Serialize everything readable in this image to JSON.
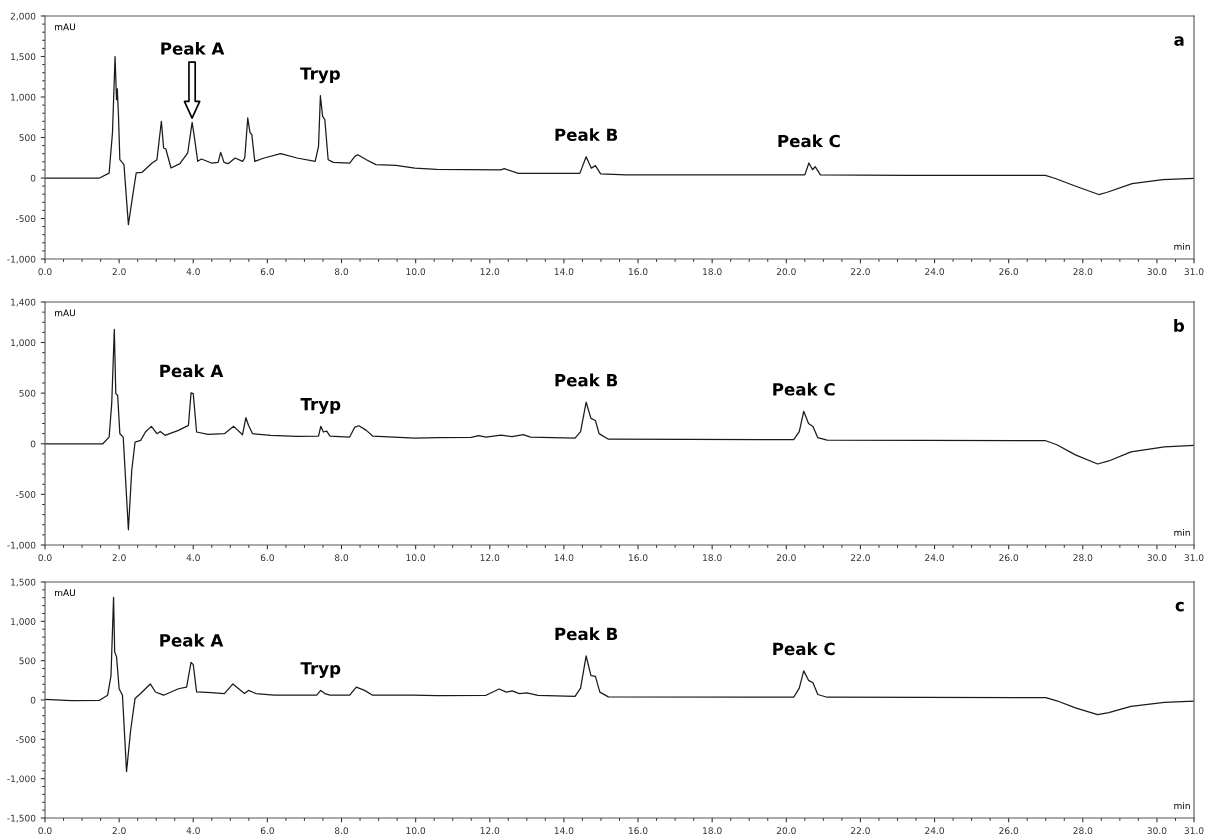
{
  "chart_data": [
    {
      "type": "line",
      "title": "a",
      "xlabel": "min",
      "ylabel": "mAU",
      "xlim": [
        0,
        31
      ],
      "xticks": [
        {
          "value": 0,
          "label": "0.0"
        },
        {
          "value": 2,
          "label": "2.0"
        },
        {
          "value": 4,
          "label": "4.0"
        },
        {
          "value": 6,
          "label": "6.0"
        },
        {
          "value": 8,
          "label": "8.0"
        },
        {
          "value": 10,
          "label": "10.0"
        },
        {
          "value": 12,
          "label": "12.0"
        },
        {
          "value": 14,
          "label": "14.0"
        },
        {
          "value": 16,
          "label": "16.0"
        },
        {
          "value": 18,
          "label": "18.0"
        },
        {
          "value": 20,
          "label": "20.0"
        },
        {
          "value": 22,
          "label": "22.0"
        },
        {
          "value": 24,
          "label": "24.0"
        },
        {
          "value": 26,
          "label": "26.0"
        },
        {
          "value": 28,
          "label": "28.0"
        },
        {
          "value": 30,
          "label": "30.0"
        },
        {
          "value": 31,
          "label": "31.0"
        }
      ],
      "ylim": [
        -1000,
        2000
      ],
      "yticks": [
        {
          "value": -1000,
          "label": "-1,000"
        },
        -500,
        0,
        500,
        {
          "value": 1000,
          "label": "1,000"
        },
        {
          "value": 1500,
          "label": "1,500"
        },
        {
          "value": 2000,
          "label": "2,000"
        }
      ],
      "grid": false,
      "legend": false,
      "marker": "none",
      "line_style": "solid",
      "annotations": [
        "Peak A",
        {
          "text": "Tryp",
          "x": 7.43,
          "y": 1016
        },
        {
          "text": "Peak B",
          "x": 14.6,
          "y": 262
        },
        {
          "text": "Peak C",
          "x": 20.61,
          "y": 185
        }
      ],
      "series": [
        {
          "color": "#1a1a1a",
          "x": [
            0,
            1.47,
            1.73,
            1.82,
            1.89,
            1.93,
            1.95,
            1.98,
            2.02,
            2.13,
            2.25,
            2.35,
            2.46,
            2.62,
            2.89,
            3.02,
            3.14,
            3.2,
            3.26,
            3.4,
            3.64,
            3.85,
            3.97,
            4.04,
            4.12,
            4.22,
            4.49,
            4.67,
            4.74,
            4.83,
            4.94,
            5.13,
            5.33,
            5.39,
            5.47,
            5.53,
            5.58,
            5.66,
            5.91,
            6.36,
            6.8,
            7.29,
            7.38,
            7.43,
            7.49,
            7.55,
            7.64,
            7.78,
            8.22,
            8.36,
            8.44,
            8.67,
            8.93,
            9.47,
            9.98,
            10.57,
            12.3,
            12.39,
            12.77,
            14.43,
            14.6,
            14.74,
            14.85,
            14.99,
            15.67,
            20.5,
            20.61,
            20.71,
            20.78,
            20.92,
            23.26,
            26.99,
            27.26,
            27.81,
            28.43,
            28.64,
            29.33,
            30.16,
            31.0
          ],
          "values": [
            0,
            0,
            60,
            555,
            1500,
            967,
            1100,
            800,
            226,
            165,
            -576,
            -267,
            62,
            70,
            185,
            226,
            700,
            370,
            358,
            123,
            177,
            309,
            687,
            473,
            206,
            235,
            185,
            193,
            317,
            193,
            177,
            247,
            206,
            247,
            741,
            564,
            535,
            206,
            247,
            300,
            247,
            206,
            391,
            1016,
            761,
            720,
            226,
            193,
            185,
            267,
            288,
            226,
            165,
            156,
            123,
            108,
            100,
            115,
            57,
            57,
            262,
            121,
            153,
            51,
            38,
            38,
            185,
            102,
            140,
            38,
            32,
            32,
            -6,
            -102,
            -204,
            -179,
            -70,
            -19,
            -6
          ]
        }
      ]
    },
    {
      "type": "line",
      "title": "b",
      "xlabel": "min",
      "ylabel": "mAU",
      "xlim": [
        0,
        31
      ],
      "xticks": [
        {
          "value": 0,
          "label": "0.0"
        },
        {
          "value": 2,
          "label": "2.0"
        },
        {
          "value": 4,
          "label": "4.0"
        },
        {
          "value": 6,
          "label": "6.0"
        },
        {
          "value": 8,
          "label": "8.0"
        },
        {
          "value": 10,
          "label": "10.0"
        },
        {
          "value": 12,
          "label": "12.0"
        },
        {
          "value": 14,
          "label": "14.0"
        },
        {
          "value": 16,
          "label": "16.0"
        },
        {
          "value": 18,
          "label": "18.0"
        },
        {
          "value": 20,
          "label": "20.0"
        },
        {
          "value": 22,
          "label": "22.0"
        },
        {
          "value": 24,
          "label": "24.0"
        },
        {
          "value": 26,
          "label": "26.0"
        },
        {
          "value": 28,
          "label": "28.0"
        },
        {
          "value": 30,
          "label": "30.0"
        },
        {
          "value": 31,
          "label": "31.0"
        }
      ],
      "ylim": [
        -1000,
        1400
      ],
      "yticks": [
        {
          "value": -1000,
          "label": "-1,000"
        },
        -500,
        0,
        500,
        {
          "value": 1000,
          "label": "1,000"
        },
        {
          "value": 1400,
          "label": "1,400"
        }
      ],
      "grid": false,
      "legend": false,
      "marker": "none",
      "line_style": "solid",
      "annotations": [
        {
          "text": "Peak A",
          "x": 3.94,
          "y": 502
        },
        {
          "text": "Tryp",
          "x": 7.44,
          "y": 172
        },
        {
          "text": "Peak B",
          "x": 14.6,
          "y": 410
        },
        {
          "text": "Peak C",
          "x": 20.47,
          "y": 320
        }
      ],
      "series": [
        {
          "color": "#1a1a1a",
          "x": [
            0,
            1.56,
            1.73,
            1.8,
            1.87,
            1.91,
            1.96,
            2.02,
            2.11,
            2.25,
            2.34,
            2.43,
            2.58,
            2.71,
            2.87,
            3.02,
            3.11,
            3.24,
            3.6,
            3.87,
            3.94,
            4.0,
            4.09,
            4.4,
            4.84,
            5.09,
            5.33,
            5.42,
            5.49,
            5.6,
            6.09,
            6.8,
            7.38,
            7.44,
            7.51,
            7.6,
            7.69,
            8.22,
            8.36,
            8.47,
            8.67,
            8.84,
            9.98,
            10.6,
            11.5,
            11.7,
            11.9,
            12.3,
            12.6,
            12.9,
            13.1,
            14.3,
            14.45,
            14.6,
            14.73,
            14.85,
            14.95,
            15.2,
            20.2,
            20.35,
            20.47,
            20.6,
            20.72,
            20.85,
            21.1,
            27.0,
            27.3,
            27.8,
            28.4,
            28.7,
            29.3,
            30.2,
            31
          ],
          "values": [
            0,
            0,
            66,
            396,
            1129,
            495,
            479,
            99,
            66,
            -850,
            -264,
            17,
            33,
            116,
            172,
            99,
            122,
            83,
            132,
            182,
            502,
            495,
            116,
            92,
            99,
            172,
            89,
            257,
            182,
            99,
            83,
            73,
            76,
            172,
            116,
            125,
            76,
            66,
            165,
            178,
            132,
            76,
            56,
            60,
            62,
            80,
            65,
            85,
            70,
            90,
            65,
            55,
            120,
            410,
            250,
            230,
            100,
            45,
            40,
            120,
            320,
            200,
            170,
            60,
            35,
            30,
            -10,
            -110,
            -200,
            -170,
            -80,
            -30,
            -15
          ]
        }
      ]
    },
    {
      "type": "line",
      "title": "c",
      "xlabel": "min",
      "ylabel": "mAU",
      "xlim": [
        0,
        31
      ],
      "xticks": [
        {
          "value": 0,
          "label": "0.0"
        },
        {
          "value": 2,
          "label": "2.0"
        },
        {
          "value": 4,
          "label": "4.0"
        },
        {
          "value": 6,
          "label": "6.0"
        },
        {
          "value": 8,
          "label": "8.0"
        },
        {
          "value": 10,
          "label": "10.0"
        },
        {
          "value": 12,
          "label": "12.0"
        },
        {
          "value": 14,
          "label": "14.0"
        },
        {
          "value": 16,
          "label": "16.0"
        },
        {
          "value": 18,
          "label": "18.0"
        },
        {
          "value": 20,
          "label": "20.0"
        },
        {
          "value": 22,
          "label": "22.0"
        },
        {
          "value": 24,
          "label": "24.0"
        },
        {
          "value": 26,
          "label": "26.0"
        },
        {
          "value": 28,
          "label": "28.0"
        },
        {
          "value": 30,
          "label": "30.0"
        },
        {
          "value": 31,
          "label": "31.0"
        }
      ],
      "ylim": [
        -1500,
        1500
      ],
      "yticks": [
        {
          "value": -1500,
          "label": "-1,500"
        },
        {
          "value": -1000,
          "label": "-1,000"
        },
        -500,
        0,
        500,
        {
          "value": 1000,
          "label": "1,000"
        },
        {
          "value": 1500,
          "label": "1,500"
        }
      ],
      "grid": false,
      "legend": false,
      "marker": "none",
      "line_style": "solid",
      "annotations": [
        {
          "text": "Peak A",
          "x": 3.94,
          "y": 478
        },
        {
          "text": "Tryp",
          "x": 7.44,
          "y": 122
        },
        {
          "text": "Peak B",
          "x": 14.6,
          "y": 560
        },
        {
          "text": "Peak C",
          "x": 20.47,
          "y": 370
        }
      ],
      "series": [
        {
          "color": "#1a1a1a",
          "x": [
            0,
            0.71,
            1.47,
            1.69,
            1.78,
            1.85,
            1.88,
            1.93,
            2.0,
            2.09,
            2.2,
            2.31,
            2.43,
            2.58,
            2.84,
            2.98,
            3.2,
            3.6,
            3.82,
            3.94,
            4.0,
            4.09,
            4.49,
            4.84,
            5.07,
            5.38,
            5.49,
            5.69,
            6.18,
            7.33,
            7.44,
            7.55,
            7.69,
            8.22,
            8.4,
            8.62,
            8.84,
            9.91,
            10.6,
            11.9,
            12.25,
            12.45,
            12.6,
            12.8,
            13.0,
            13.3,
            14.3,
            14.45,
            14.6,
            14.73,
            14.85,
            14.97,
            15.2,
            20.2,
            20.35,
            20.47,
            20.6,
            20.72,
            20.85,
            21.1,
            27.0,
            27.3,
            27.8,
            28.4,
            28.7,
            29.3,
            30.2,
            31
          ],
          "values": [
            8,
            -8,
            -4,
            61,
            306,
            1306,
            612,
            551,
            143,
            61,
            -910,
            -388,
            20,
            82,
            204,
            102,
            61,
            143,
            163,
            478,
            449,
            102,
            94,
            82,
            204,
            82,
            122,
            82,
            61,
            61,
            122,
            82,
            61,
            61,
            163,
            122,
            61,
            61,
            55,
            60,
            140,
            100,
            115,
            80,
            90,
            60,
            45,
            150,
            560,
            310,
            300,
            100,
            40,
            35,
            150,
            370,
            250,
            220,
            70,
            35,
            30,
            -10,
            -100,
            -185,
            -160,
            -80,
            -30,
            -15
          ]
        }
      ]
    }
  ]
}
